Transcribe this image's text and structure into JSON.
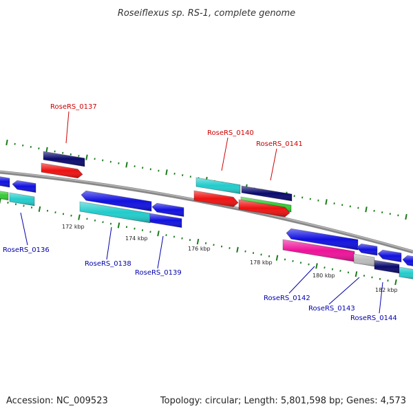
{
  "title": "Roseiflexus sp. RS-1, complete genome",
  "footer": {
    "accession": "Accession: NC_009523",
    "topology": "Topology: circular; Length: 5,801,598 bp; Genes: 4,573"
  },
  "tick_labels": [
    "172 kbp",
    "174 kbp",
    "176 kbp",
    "178 kbp",
    "180 kbp",
    "182 kbp"
  ],
  "gene_labels": {
    "forward": [
      "RoseRS_0137",
      "RoseRS_0140",
      "RoseRS_0141"
    ],
    "reverse": [
      "RoseRS_0136",
      "RoseRS_0138",
      "RoseRS_0139",
      "RoseRS_0142",
      "RoseRS_0143",
      "RoseRS_0144"
    ]
  },
  "colors": {
    "forward_label": "#cc0000",
    "reverse_label": "#0000aa",
    "backbone": "#808080",
    "tick": "#1a7a1a",
    "blue": "#1010e0",
    "navy": "#0a0a6e",
    "cyan": "#22cccc",
    "red": "#ee1111",
    "green": "#33cc33",
    "magenta": "#ee1199",
    "gray": "#bbbbbb"
  }
}
